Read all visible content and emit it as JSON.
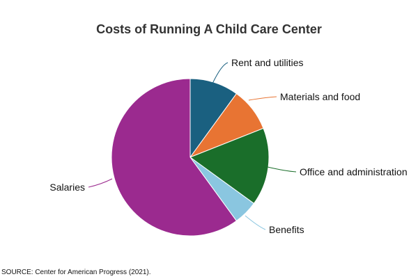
{
  "chart_data": {
    "type": "pie",
    "title": "Costs of Running A Child Care Center",
    "source": "SOURCE: Center for American Progress (2021).",
    "start_angle_deg": 0,
    "direction": "clockwise",
    "slices": [
      {
        "label": "Rent and utilities",
        "value": 10,
        "color": "#1a6080"
      },
      {
        "label": "Materials and food",
        "value": 9,
        "color": "#e87433"
      },
      {
        "label": "Office and administration",
        "value": 16,
        "color": "#1a6e2a"
      },
      {
        "label": "Benefits",
        "value": 5,
        "color": "#8ac6e0"
      },
      {
        "label": "Salaries",
        "value": 60,
        "color": "#9b2a8f"
      }
    ]
  }
}
